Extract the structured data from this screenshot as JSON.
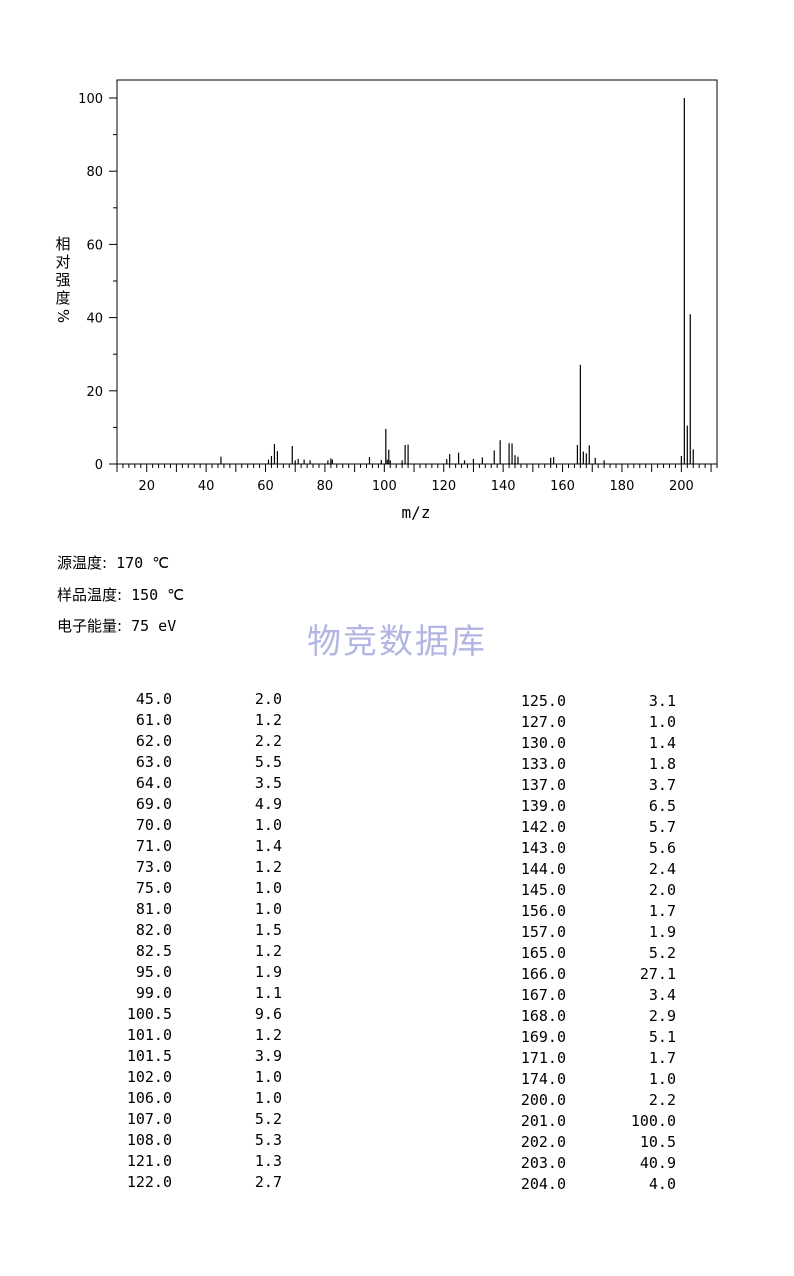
{
  "chart_data": {
    "type": "bar",
    "xlabel": "m/z",
    "ylabel": "相对强度%",
    "xlim": [
      10,
      212
    ],
    "ylim": [
      0,
      100
    ],
    "x_ticks": [
      20,
      40,
      60,
      80,
      100,
      120,
      140,
      160,
      180,
      200
    ],
    "y_ticks": [
      0,
      20,
      40,
      60,
      80,
      100
    ],
    "grid": false,
    "peaks": [
      {
        "mz": 45.0,
        "intensity": 2.0
      },
      {
        "mz": 61.0,
        "intensity": 1.2
      },
      {
        "mz": 62.0,
        "intensity": 2.2
      },
      {
        "mz": 63.0,
        "intensity": 5.5
      },
      {
        "mz": 64.0,
        "intensity": 3.5
      },
      {
        "mz": 69.0,
        "intensity": 4.9
      },
      {
        "mz": 70.0,
        "intensity": 1.0
      },
      {
        "mz": 71.0,
        "intensity": 1.4
      },
      {
        "mz": 73.0,
        "intensity": 1.2
      },
      {
        "mz": 75.0,
        "intensity": 1.0
      },
      {
        "mz": 81.0,
        "intensity": 1.0
      },
      {
        "mz": 82.0,
        "intensity": 1.5
      },
      {
        "mz": 82.5,
        "intensity": 1.2
      },
      {
        "mz": 95.0,
        "intensity": 1.9
      },
      {
        "mz": 99.0,
        "intensity": 1.1
      },
      {
        "mz": 100.5,
        "intensity": 9.6
      },
      {
        "mz": 101.0,
        "intensity": 1.2
      },
      {
        "mz": 101.5,
        "intensity": 3.9
      },
      {
        "mz": 102.0,
        "intensity": 1.0
      },
      {
        "mz": 106.0,
        "intensity": 1.0
      },
      {
        "mz": 107.0,
        "intensity": 5.2
      },
      {
        "mz": 108.0,
        "intensity": 5.3
      },
      {
        "mz": 121.0,
        "intensity": 1.3
      },
      {
        "mz": 122.0,
        "intensity": 2.7
      },
      {
        "mz": 125.0,
        "intensity": 3.1
      },
      {
        "mz": 127.0,
        "intensity": 1.0
      },
      {
        "mz": 130.0,
        "intensity": 1.4
      },
      {
        "mz": 133.0,
        "intensity": 1.8
      },
      {
        "mz": 137.0,
        "intensity": 3.7
      },
      {
        "mz": 139.0,
        "intensity": 6.5
      },
      {
        "mz": 142.0,
        "intensity": 5.7
      },
      {
        "mz": 143.0,
        "intensity": 5.6
      },
      {
        "mz": 144.0,
        "intensity": 2.4
      },
      {
        "mz": 145.0,
        "intensity": 2.0
      },
      {
        "mz": 156.0,
        "intensity": 1.7
      },
      {
        "mz": 157.0,
        "intensity": 1.9
      },
      {
        "mz": 165.0,
        "intensity": 5.2
      },
      {
        "mz": 166.0,
        "intensity": 27.1
      },
      {
        "mz": 167.0,
        "intensity": 3.4
      },
      {
        "mz": 168.0,
        "intensity": 2.9
      },
      {
        "mz": 169.0,
        "intensity": 5.1
      },
      {
        "mz": 171.0,
        "intensity": 1.7
      },
      {
        "mz": 174.0,
        "intensity": 1.0
      },
      {
        "mz": 200.0,
        "intensity": 2.2
      },
      {
        "mz": 201.0,
        "intensity": 100.0
      },
      {
        "mz": 202.0,
        "intensity": 10.5
      },
      {
        "mz": 203.0,
        "intensity": 40.9
      },
      {
        "mz": 204.0,
        "intensity": 4.0
      }
    ]
  },
  "conditions": {
    "source_temp_label": "源温度:",
    "source_temp_value": "170 ℃",
    "sample_temp_label": "样品温度:",
    "sample_temp_value": "150 ℃",
    "electron_energy_label": "电子能量:",
    "electron_energy_value": "75 eV"
  },
  "watermark": "物竞数据库",
  "peak_table": {
    "left": [
      [
        "45.0",
        "2.0"
      ],
      [
        "61.0",
        "1.2"
      ],
      [
        "62.0",
        "2.2"
      ],
      [
        "63.0",
        "5.5"
      ],
      [
        "64.0",
        "3.5"
      ],
      [
        "69.0",
        "4.9"
      ],
      [
        "70.0",
        "1.0"
      ],
      [
        "71.0",
        "1.4"
      ],
      [
        "73.0",
        "1.2"
      ],
      [
        "75.0",
        "1.0"
      ],
      [
        "81.0",
        "1.0"
      ],
      [
        "82.0",
        "1.5"
      ],
      [
        "82.5",
        "1.2"
      ],
      [
        "95.0",
        "1.9"
      ],
      [
        "99.0",
        "1.1"
      ],
      [
        "100.5",
        "9.6"
      ],
      [
        "101.0",
        "1.2"
      ],
      [
        "101.5",
        "3.9"
      ],
      [
        "102.0",
        "1.0"
      ],
      [
        "106.0",
        "1.0"
      ],
      [
        "107.0",
        "5.2"
      ],
      [
        "108.0",
        "5.3"
      ],
      [
        "121.0",
        "1.3"
      ],
      [
        "122.0",
        "2.7"
      ]
    ],
    "right": [
      [
        "125.0",
        "3.1"
      ],
      [
        "127.0",
        "1.0"
      ],
      [
        "130.0",
        "1.4"
      ],
      [
        "133.0",
        "1.8"
      ],
      [
        "137.0",
        "3.7"
      ],
      [
        "139.0",
        "6.5"
      ],
      [
        "142.0",
        "5.7"
      ],
      [
        "143.0",
        "5.6"
      ],
      [
        "144.0",
        "2.4"
      ],
      [
        "145.0",
        "2.0"
      ],
      [
        "156.0",
        "1.7"
      ],
      [
        "157.0",
        "1.9"
      ],
      [
        "165.0",
        "5.2"
      ],
      [
        "166.0",
        "27.1"
      ],
      [
        "167.0",
        "3.4"
      ],
      [
        "168.0",
        "2.9"
      ],
      [
        "169.0",
        "5.1"
      ],
      [
        "171.0",
        "1.7"
      ],
      [
        "174.0",
        "1.0"
      ],
      [
        "200.0",
        "2.2"
      ],
      [
        "201.0",
        "100.0"
      ],
      [
        "202.0",
        "10.5"
      ],
      [
        "203.0",
        "40.9"
      ],
      [
        "204.0",
        "4.0"
      ]
    ]
  }
}
